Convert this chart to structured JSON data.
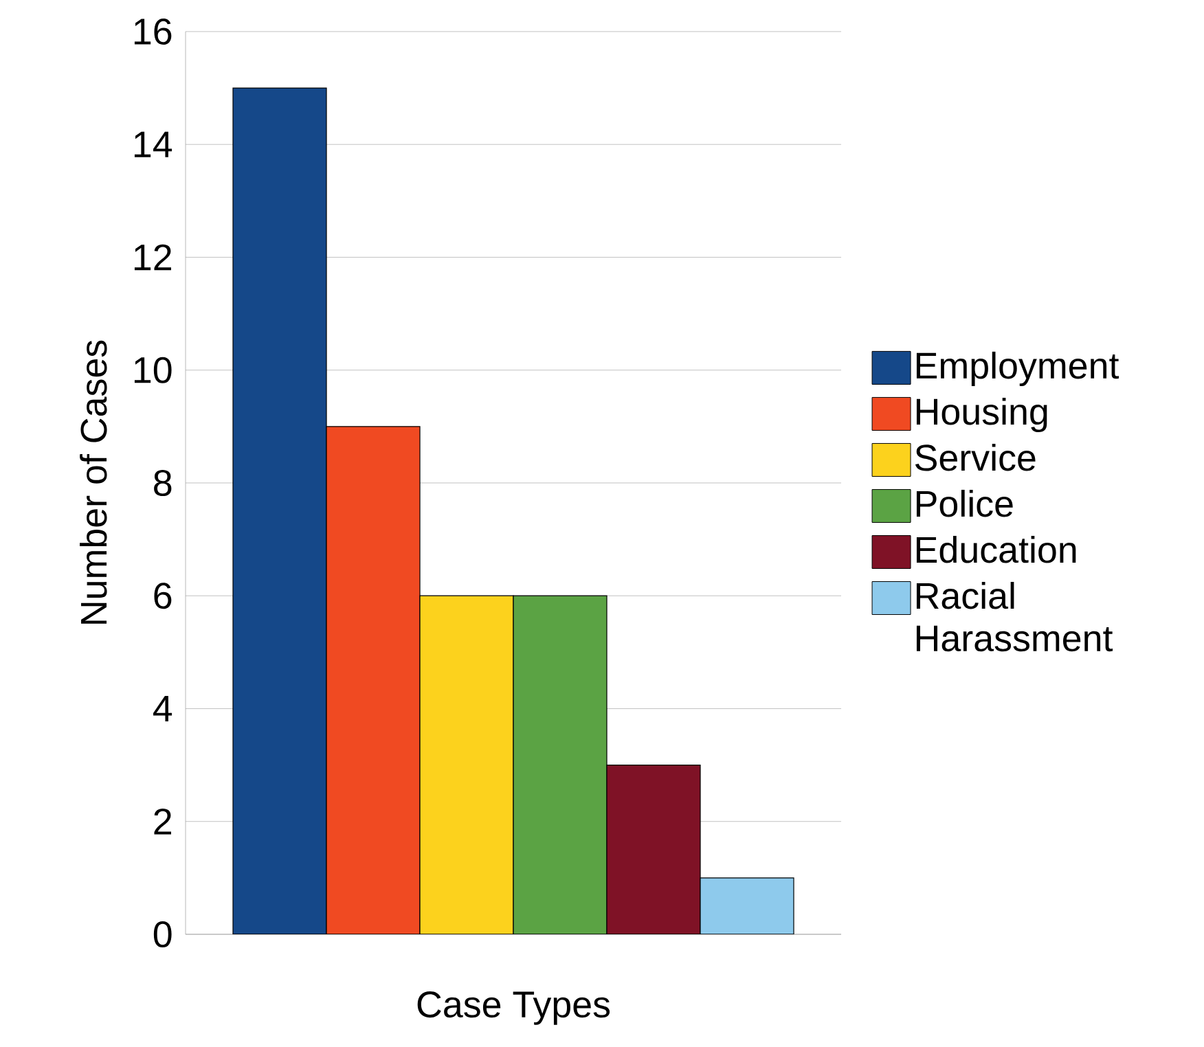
{
  "chart_data": {
    "type": "bar",
    "xlabel": "Case Types",
    "ylabel": "Number of Cases",
    "categories": [
      null
    ],
    "series": [
      {
        "name": "Employment",
        "color": "#154889",
        "values": [
          15
        ]
      },
      {
        "name": "Housing",
        "color": "#f04a22",
        "values": [
          9
        ]
      },
      {
        "name": "Service",
        "color": "#fcd21d",
        "values": [
          6
        ]
      },
      {
        "name": "Police",
        "color": "#5ba344",
        "values": [
          6
        ]
      },
      {
        "name": "Education",
        "color": "#7f1226",
        "values": [
          3
        ]
      },
      {
        "name": "Racial Harassment",
        "color": "#8ecaec",
        "values": [
          1
        ]
      }
    ],
    "ylim": [
      0,
      16
    ],
    "yticks": [
      0,
      2,
      4,
      6,
      8,
      10,
      12,
      14,
      16
    ],
    "grid": "y",
    "legend": "right"
  }
}
